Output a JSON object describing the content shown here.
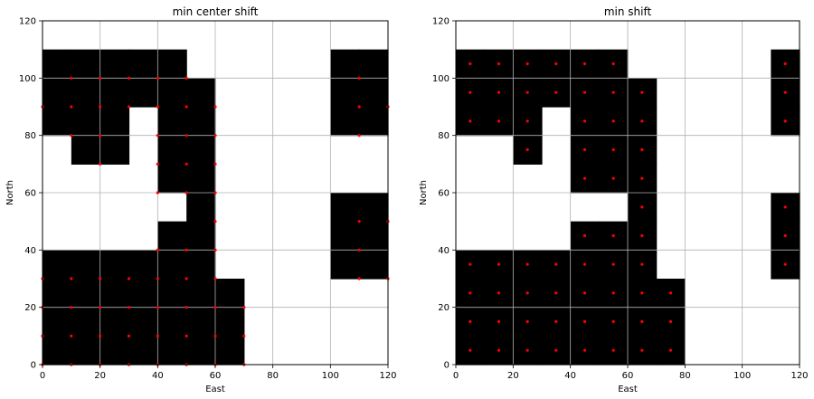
{
  "chart_data": [
    {
      "type": "heatmap",
      "title": "min center shift",
      "xlabel": "East",
      "ylabel": "North",
      "xlim": [
        0,
        120
      ],
      "ylim": [
        0,
        120
      ],
      "xticks": [
        0,
        20,
        40,
        60,
        80,
        100,
        120
      ],
      "yticks": [
        0,
        20,
        40,
        60,
        80,
        100,
        120
      ],
      "grid": true,
      "cell_size": 10,
      "cell_color": "#000000",
      "point_color": "#ff0000",
      "cells": [
        [
          5,
          5
        ],
        [
          15,
          5
        ],
        [
          25,
          5
        ],
        [
          35,
          5
        ],
        [
          45,
          5
        ],
        [
          55,
          5
        ],
        [
          65,
          5
        ],
        [
          5,
          15
        ],
        [
          15,
          15
        ],
        [
          25,
          15
        ],
        [
          35,
          15
        ],
        [
          45,
          15
        ],
        [
          55,
          15
        ],
        [
          65,
          15
        ],
        [
          5,
          25
        ],
        [
          15,
          25
        ],
        [
          25,
          25
        ],
        [
          35,
          25
        ],
        [
          45,
          25
        ],
        [
          55,
          25
        ],
        [
          65,
          25
        ],
        [
          5,
          35
        ],
        [
          15,
          35
        ],
        [
          25,
          35
        ],
        [
          35,
          35
        ],
        [
          45,
          35
        ],
        [
          55,
          35
        ],
        [
          45,
          45
        ],
        [
          55,
          45
        ],
        [
          55,
          55
        ],
        [
          45,
          65
        ],
        [
          55,
          65
        ],
        [
          15,
          75
        ],
        [
          25,
          75
        ],
        [
          45,
          75
        ],
        [
          55,
          75
        ],
        [
          5,
          85
        ],
        [
          15,
          85
        ],
        [
          25,
          85
        ],
        [
          45,
          85
        ],
        [
          55,
          85
        ],
        [
          5,
          95
        ],
        [
          15,
          95
        ],
        [
          25,
          95
        ],
        [
          35,
          95
        ],
        [
          45,
          95
        ],
        [
          55,
          95
        ],
        [
          5,
          105
        ],
        [
          15,
          105
        ],
        [
          25,
          105
        ],
        [
          35,
          105
        ],
        [
          45,
          105
        ],
        [
          105,
          85
        ],
        [
          115,
          85
        ],
        [
          105,
          95
        ],
        [
          115,
          95
        ],
        [
          105,
          105
        ],
        [
          115,
          105
        ],
        [
          105,
          35
        ],
        [
          115,
          35
        ],
        [
          105,
          45
        ],
        [
          115,
          45
        ],
        [
          105,
          55
        ],
        [
          115,
          55
        ]
      ],
      "points": [
        [
          0,
          0
        ],
        [
          10,
          0
        ],
        [
          20,
          0
        ],
        [
          30,
          0
        ],
        [
          40,
          0
        ],
        [
          50,
          0
        ],
        [
          60,
          0
        ],
        [
          70,
          0
        ],
        [
          0,
          10
        ],
        [
          10,
          10
        ],
        [
          20,
          10
        ],
        [
          30,
          10
        ],
        [
          40,
          10
        ],
        [
          50,
          10
        ],
        [
          60,
          10
        ],
        [
          70,
          10
        ],
        [
          0,
          20
        ],
        [
          10,
          20
        ],
        [
          20,
          20
        ],
        [
          30,
          20
        ],
        [
          40,
          20
        ],
        [
          50,
          20
        ],
        [
          60,
          20
        ],
        [
          70,
          20
        ],
        [
          0,
          30
        ],
        [
          10,
          30
        ],
        [
          20,
          30
        ],
        [
          30,
          30
        ],
        [
          40,
          30
        ],
        [
          50,
          30
        ],
        [
          60,
          30
        ],
        [
          40,
          40
        ],
        [
          50,
          40
        ],
        [
          60,
          40
        ],
        [
          60,
          50
        ],
        [
          40,
          60
        ],
        [
          50,
          60
        ],
        [
          60,
          60
        ],
        [
          20,
          70
        ],
        [
          40,
          70
        ],
        [
          50,
          70
        ],
        [
          60,
          70
        ],
        [
          10,
          80
        ],
        [
          20,
          80
        ],
        [
          40,
          80
        ],
        [
          50,
          80
        ],
        [
          60,
          80
        ],
        [
          0,
          90
        ],
        [
          10,
          90
        ],
        [
          20,
          90
        ],
        [
          30,
          90
        ],
        [
          40,
          90
        ],
        [
          50,
          90
        ],
        [
          60,
          90
        ],
        [
          10,
          100
        ],
        [
          20,
          100
        ],
        [
          30,
          100
        ],
        [
          40,
          100
        ],
        [
          50,
          100
        ],
        [
          110,
          80
        ],
        [
          110,
          90
        ],
        [
          120,
          90
        ],
        [
          110,
          100
        ],
        [
          110,
          30
        ],
        [
          120,
          30
        ],
        [
          110,
          40
        ],
        [
          110,
          50
        ],
        [
          120,
          50
        ]
      ]
    },
    {
      "type": "heatmap",
      "title": "min shift",
      "xlabel": "East",
      "ylabel": "North",
      "xlim": [
        0,
        120
      ],
      "ylim": [
        0,
        120
      ],
      "xticks": [
        0,
        20,
        40,
        60,
        80,
        100,
        120
      ],
      "yticks": [
        0,
        20,
        40,
        60,
        80,
        100,
        120
      ],
      "grid": true,
      "cell_size": 10,
      "cell_color": "#000000",
      "point_color": "#ff0000",
      "cells": [
        [
          5,
          5
        ],
        [
          15,
          5
        ],
        [
          25,
          5
        ],
        [
          35,
          5
        ],
        [
          45,
          5
        ],
        [
          55,
          5
        ],
        [
          65,
          5
        ],
        [
          75,
          5
        ],
        [
          5,
          15
        ],
        [
          15,
          15
        ],
        [
          25,
          15
        ],
        [
          35,
          15
        ],
        [
          45,
          15
        ],
        [
          55,
          15
        ],
        [
          65,
          15
        ],
        [
          75,
          15
        ],
        [
          5,
          25
        ],
        [
          15,
          25
        ],
        [
          25,
          25
        ],
        [
          35,
          25
        ],
        [
          45,
          25
        ],
        [
          55,
          25
        ],
        [
          65,
          25
        ],
        [
          75,
          25
        ],
        [
          5,
          35
        ],
        [
          15,
          35
        ],
        [
          25,
          35
        ],
        [
          35,
          35
        ],
        [
          45,
          35
        ],
        [
          55,
          35
        ],
        [
          65,
          35
        ],
        [
          45,
          45
        ],
        [
          55,
          45
        ],
        [
          65,
          45
        ],
        [
          65,
          55
        ],
        [
          45,
          65
        ],
        [
          55,
          65
        ],
        [
          65,
          65
        ],
        [
          25,
          75
        ],
        [
          45,
          75
        ],
        [
          55,
          75
        ],
        [
          65,
          75
        ],
        [
          5,
          85
        ],
        [
          15,
          85
        ],
        [
          25,
          85
        ],
        [
          45,
          85
        ],
        [
          55,
          85
        ],
        [
          65,
          85
        ],
        [
          5,
          95
        ],
        [
          15,
          95
        ],
        [
          25,
          95
        ],
        [
          35,
          95
        ],
        [
          45,
          95
        ],
        [
          55,
          95
        ],
        [
          65,
          95
        ],
        [
          5,
          105
        ],
        [
          15,
          105
        ],
        [
          25,
          105
        ],
        [
          35,
          105
        ],
        [
          45,
          105
        ],
        [
          55,
          105
        ],
        [
          115,
          85
        ],
        [
          115,
          95
        ],
        [
          115,
          105
        ],
        [
          115,
          35
        ],
        [
          115,
          45
        ],
        [
          115,
          55
        ]
      ],
      "points": [
        [
          5,
          5
        ],
        [
          15,
          5
        ],
        [
          25,
          5
        ],
        [
          35,
          5
        ],
        [
          45,
          5
        ],
        [
          55,
          5
        ],
        [
          65,
          5
        ],
        [
          75,
          5
        ],
        [
          5,
          15
        ],
        [
          15,
          15
        ],
        [
          25,
          15
        ],
        [
          35,
          15
        ],
        [
          45,
          15
        ],
        [
          55,
          15
        ],
        [
          65,
          15
        ],
        [
          75,
          15
        ],
        [
          5,
          25
        ],
        [
          15,
          25
        ],
        [
          25,
          25
        ],
        [
          35,
          25
        ],
        [
          45,
          25
        ],
        [
          55,
          25
        ],
        [
          65,
          25
        ],
        [
          75,
          25
        ],
        [
          5,
          35
        ],
        [
          15,
          35
        ],
        [
          25,
          35
        ],
        [
          35,
          35
        ],
        [
          45,
          35
        ],
        [
          55,
          35
        ],
        [
          65,
          35
        ],
        [
          45,
          45
        ],
        [
          55,
          45
        ],
        [
          65,
          45
        ],
        [
          65,
          55
        ],
        [
          45,
          65
        ],
        [
          55,
          65
        ],
        [
          65,
          65
        ],
        [
          25,
          75
        ],
        [
          45,
          75
        ],
        [
          55,
          75
        ],
        [
          65,
          75
        ],
        [
          5,
          85
        ],
        [
          15,
          85
        ],
        [
          25,
          85
        ],
        [
          45,
          85
        ],
        [
          55,
          85
        ],
        [
          65,
          85
        ],
        [
          5,
          95
        ],
        [
          15,
          95
        ],
        [
          25,
          95
        ],
        [
          35,
          95
        ],
        [
          45,
          95
        ],
        [
          55,
          95
        ],
        [
          65,
          95
        ],
        [
          5,
          105
        ],
        [
          15,
          105
        ],
        [
          25,
          105
        ],
        [
          35,
          105
        ],
        [
          45,
          105
        ],
        [
          55,
          105
        ],
        [
          115,
          85
        ],
        [
          115,
          95
        ],
        [
          115,
          105
        ],
        [
          115,
          35
        ],
        [
          115,
          45
        ],
        [
          115,
          55
        ]
      ]
    }
  ]
}
